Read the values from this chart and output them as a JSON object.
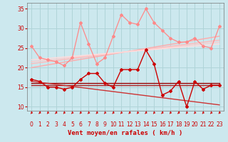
{
  "xlabel": "Vent moyen/en rafales ( km/h )",
  "bg_color": "#cce8ee",
  "grid_color": "#b0d4d8",
  "xlim": [
    -0.5,
    23.5
  ],
  "ylim": [
    9.0,
    36.5
  ],
  "yticks": [
    10,
    15,
    20,
    25,
    30,
    35
  ],
  "xticks": [
    0,
    1,
    2,
    3,
    4,
    5,
    6,
    7,
    8,
    9,
    10,
    11,
    12,
    13,
    14,
    15,
    16,
    17,
    18,
    19,
    20,
    21,
    22,
    23
  ],
  "series": [
    {
      "name": "rafales_pink",
      "x": [
        0,
        1,
        2,
        3,
        4,
        5,
        6,
        7,
        8,
        9,
        10,
        11,
        12,
        13,
        14,
        15,
        16,
        17,
        18,
        19,
        20,
        21,
        22,
        23
      ],
      "y": [
        25.5,
        22.5,
        22.0,
        21.5,
        20.5,
        22.5,
        31.5,
        26.0,
        21.0,
        22.5,
        28.0,
        33.5,
        31.5,
        31.0,
        35.0,
        31.5,
        29.5,
        27.5,
        26.5,
        26.5,
        27.5,
        25.5,
        25.0,
        30.5
      ],
      "color": "#ff8888",
      "lw": 0.9,
      "marker": "D",
      "ms": 2.0,
      "zorder": 4
    },
    {
      "name": "trend_pink1",
      "x": [
        0,
        23
      ],
      "y": [
        20.0,
        28.0
      ],
      "color": "#ffaaaa",
      "lw": 1.0,
      "zorder": 2
    },
    {
      "name": "trend_pink2",
      "x": [
        0,
        23
      ],
      "y": [
        21.0,
        27.0
      ],
      "color": "#ffbbbb",
      "lw": 1.0,
      "zorder": 2
    },
    {
      "name": "trend_pink3",
      "x": [
        0,
        23
      ],
      "y": [
        21.5,
        26.5
      ],
      "color": "#ffcccc",
      "lw": 1.0,
      "zorder": 2
    },
    {
      "name": "trend_pink4",
      "x": [
        0,
        23
      ],
      "y": [
        22.0,
        26.0
      ],
      "color": "#ffdddd",
      "lw": 1.0,
      "zorder": 2
    },
    {
      "name": "moyen_dark",
      "x": [
        0,
        1,
        2,
        3,
        4,
        5,
        6,
        7,
        8,
        9,
        10,
        11,
        12,
        13,
        14,
        15,
        16,
        17,
        18,
        19,
        20,
        21,
        22,
        23
      ],
      "y": [
        17.0,
        16.5,
        15.0,
        15.0,
        14.5,
        15.0,
        17.0,
        18.5,
        18.5,
        16.0,
        15.0,
        19.5,
        19.5,
        19.5,
        24.5,
        21.0,
        13.0,
        14.0,
        16.5,
        10.0,
        16.5,
        14.5,
        15.5,
        15.5
      ],
      "color": "#cc0000",
      "lw": 1.0,
      "marker": "D",
      "ms": 2.0,
      "zorder": 5
    },
    {
      "name": "trend_dark_flat",
      "x": [
        0,
        23
      ],
      "y": [
        16.0,
        16.0
      ],
      "color": "#990000",
      "lw": 1.0,
      "zorder": 3
    },
    {
      "name": "trend_dark_flat2",
      "x": [
        0,
        23
      ],
      "y": [
        15.5,
        15.5
      ],
      "color": "#aa2222",
      "lw": 1.0,
      "zorder": 3
    },
    {
      "name": "trend_dark_decline",
      "x": [
        0,
        23
      ],
      "y": [
        16.5,
        10.5
      ],
      "color": "#cc3333",
      "lw": 1.0,
      "zorder": 3
    }
  ],
  "arrow_color": "#cc2222",
  "xlabel_color": "#cc0000",
  "tick_color": "#cc0000",
  "xlabel_fontsize": 6.5,
  "tick_fontsize": 5.5
}
